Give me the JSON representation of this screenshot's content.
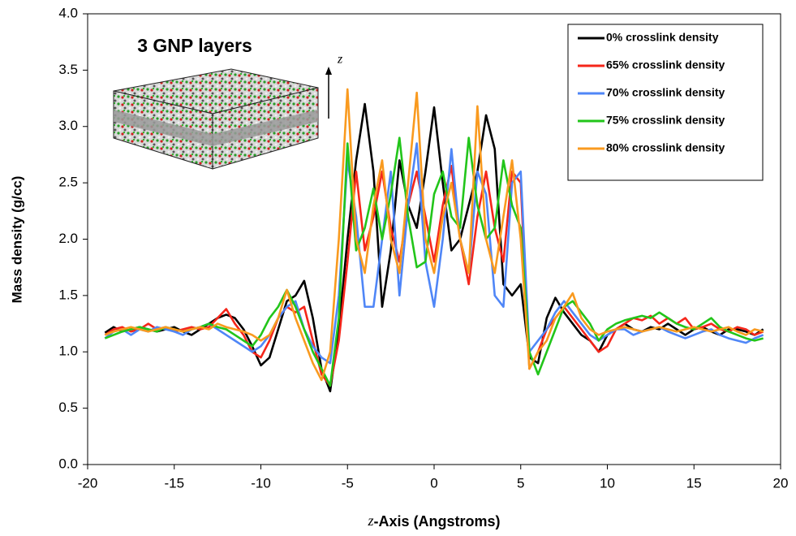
{
  "chart_data": {
    "type": "line",
    "x_label_var": "z",
    "x_label": "-Axis (Angstroms)",
    "y_label": "Mass density (g/cc)",
    "inset": {
      "title": "3 GNP layers",
      "axis_label": "z"
    },
    "legend": "top-right",
    "xlim": [
      -20,
      20
    ],
    "xticks": [
      -20,
      -15,
      -10,
      -5,
      0,
      5,
      10,
      15,
      20
    ],
    "ylim": [
      0,
      4
    ],
    "yticks": [
      {
        "value": 0,
        "label": "0.0"
      },
      0.5,
      {
        "value": 1,
        "label": "1.0"
      },
      1.5,
      {
        "value": 2,
        "label": "2.0"
      },
      2.5,
      {
        "value": 3,
        "label": "3.0"
      },
      3.5,
      {
        "value": 4,
        "label": "4.0"
      }
    ],
    "x": [
      -19,
      -18.5,
      -18,
      -17.5,
      -17,
      -16.5,
      -16,
      -15.5,
      -15,
      -14.5,
      -14,
      -13.5,
      -13,
      -12.5,
      -12,
      -11.5,
      -11,
      -10.5,
      -10,
      -9.5,
      -9,
      -8.5,
      -8,
      -7.5,
      -7,
      -6.5,
      -6,
      -5.5,
      -5,
      -4.5,
      -4,
      -3.5,
      -3,
      -2.5,
      -2,
      -1.5,
      -1,
      -0.5,
      0,
      0.5,
      1,
      1.5,
      2,
      2.5,
      3,
      3.5,
      4,
      4.5,
      5,
      5.5,
      6,
      6.5,
      7,
      7.5,
      8,
      8.5,
      9,
      9.5,
      10,
      10.5,
      11,
      11.5,
      12,
      12.5,
      13,
      13.5,
      14,
      14.5,
      15,
      15.5,
      16,
      16.5,
      17,
      17.5,
      18,
      18.5,
      19
    ],
    "series": [
      {
        "name": "0% crosslink density",
        "color": "#000000",
        "values": [
          1.17,
          1.22,
          1.18,
          1.2,
          1.22,
          1.2,
          1.18,
          1.2,
          1.22,
          1.18,
          1.15,
          1.2,
          1.25,
          1.3,
          1.33,
          1.3,
          1.2,
          1.05,
          0.88,
          0.95,
          1.2,
          1.45,
          1.5,
          1.63,
          1.3,
          0.85,
          0.65,
          1.2,
          2.0,
          2.7,
          3.2,
          2.6,
          1.4,
          1.9,
          2.7,
          2.3,
          2.1,
          2.6,
          3.17,
          2.5,
          1.9,
          2.0,
          2.3,
          2.6,
          3.1,
          2.8,
          1.6,
          1.5,
          1.6,
          0.95,
          0.9,
          1.3,
          1.48,
          1.35,
          1.25,
          1.15,
          1.1,
          1.0,
          1.15,
          1.2,
          1.25,
          1.2,
          1.18,
          1.22,
          1.2,
          1.25,
          1.2,
          1.15,
          1.2,
          1.22,
          1.18,
          1.15,
          1.2,
          1.2,
          1.18,
          1.15,
          1.2
        ]
      },
      {
        "name": "65% crosslink density",
        "color": "#f5261a",
        "values": [
          1.15,
          1.2,
          1.22,
          1.18,
          1.2,
          1.25,
          1.2,
          1.22,
          1.18,
          1.2,
          1.22,
          1.2,
          1.22,
          1.3,
          1.38,
          1.25,
          1.15,
          1.0,
          0.95,
          1.1,
          1.3,
          1.4,
          1.35,
          1.4,
          1.1,
          0.8,
          0.7,
          1.1,
          1.8,
          2.6,
          1.9,
          2.2,
          2.6,
          2.1,
          1.8,
          2.3,
          2.6,
          2.2,
          1.8,
          2.3,
          2.65,
          2.0,
          1.6,
          2.2,
          2.6,
          2.1,
          1.8,
          2.6,
          2.5,
          0.85,
          1.0,
          1.2,
          1.3,
          1.4,
          1.3,
          1.2,
          1.1,
          1.0,
          1.05,
          1.2,
          1.25,
          1.3,
          1.28,
          1.32,
          1.25,
          1.3,
          1.25,
          1.3,
          1.2,
          1.22,
          1.25,
          1.2,
          1.18,
          1.22,
          1.2,
          1.15,
          1.18
        ]
      },
      {
        "name": "70% crosslink density",
        "color": "#4f86f7",
        "values": [
          1.12,
          1.18,
          1.2,
          1.15,
          1.2,
          1.18,
          1.22,
          1.2,
          1.18,
          1.15,
          1.2,
          1.22,
          1.25,
          1.2,
          1.15,
          1.1,
          1.05,
          1.0,
          1.05,
          1.15,
          1.3,
          1.4,
          1.45,
          1.2,
          1.05,
          0.95,
          0.9,
          1.5,
          2.7,
          2.2,
          1.4,
          1.4,
          2.0,
          2.6,
          1.5,
          2.3,
          2.85,
          1.8,
          1.4,
          2.0,
          2.8,
          2.0,
          1.7,
          2.6,
          2.4,
          1.5,
          1.4,
          2.5,
          2.6,
          1.0,
          1.1,
          1.2,
          1.35,
          1.45,
          1.35,
          1.25,
          1.15,
          1.1,
          1.15,
          1.2,
          1.2,
          1.15,
          1.18,
          1.2,
          1.22,
          1.18,
          1.15,
          1.12,
          1.15,
          1.18,
          1.2,
          1.15,
          1.12,
          1.1,
          1.08,
          1.12,
          1.15
        ]
      },
      {
        "name": "75% crosslink density",
        "color": "#22c51a",
        "values": [
          1.12,
          1.15,
          1.18,
          1.2,
          1.22,
          1.2,
          1.18,
          1.22,
          1.2,
          1.18,
          1.2,
          1.22,
          1.25,
          1.22,
          1.2,
          1.15,
          1.1,
          1.05,
          1.15,
          1.3,
          1.4,
          1.55,
          1.4,
          1.2,
          1.0,
          0.85,
          0.7,
          1.3,
          2.85,
          1.9,
          2.1,
          2.45,
          2.0,
          2.4,
          2.9,
          2.2,
          1.75,
          1.8,
          2.4,
          2.6,
          2.2,
          2.1,
          2.9,
          2.3,
          2.0,
          2.1,
          2.7,
          2.3,
          2.1,
          1.0,
          0.8,
          1.0,
          1.2,
          1.4,
          1.45,
          1.35,
          1.25,
          1.1,
          1.2,
          1.25,
          1.28,
          1.3,
          1.32,
          1.3,
          1.35,
          1.3,
          1.25,
          1.22,
          1.2,
          1.25,
          1.3,
          1.22,
          1.18,
          1.15,
          1.12,
          1.1,
          1.12
        ]
      },
      {
        "name": "80% crosslink density",
        "color": "#f99a1f",
        "values": [
          1.15,
          1.18,
          1.2,
          1.22,
          1.2,
          1.18,
          1.2,
          1.22,
          1.2,
          1.18,
          1.2,
          1.22,
          1.2,
          1.25,
          1.22,
          1.2,
          1.18,
          1.15,
          1.1,
          1.15,
          1.3,
          1.55,
          1.3,
          1.1,
          0.9,
          0.75,
          1.0,
          2.0,
          3.33,
          2.0,
          1.7,
          2.3,
          2.7,
          2.0,
          1.7,
          2.5,
          3.3,
          2.0,
          1.7,
          2.2,
          2.5,
          2.0,
          1.7,
          3.18,
          2.0,
          1.7,
          2.2,
          2.7,
          2.0,
          0.85,
          1.0,
          1.1,
          1.3,
          1.4,
          1.52,
          1.3,
          1.2,
          1.15,
          1.18,
          1.2,
          1.22,
          1.2,
          1.18,
          1.2,
          1.22,
          1.2,
          1.18,
          1.2,
          1.22,
          1.2,
          1.18,
          1.2,
          1.22,
          1.18,
          1.15,
          1.2,
          1.18
        ]
      }
    ]
  }
}
